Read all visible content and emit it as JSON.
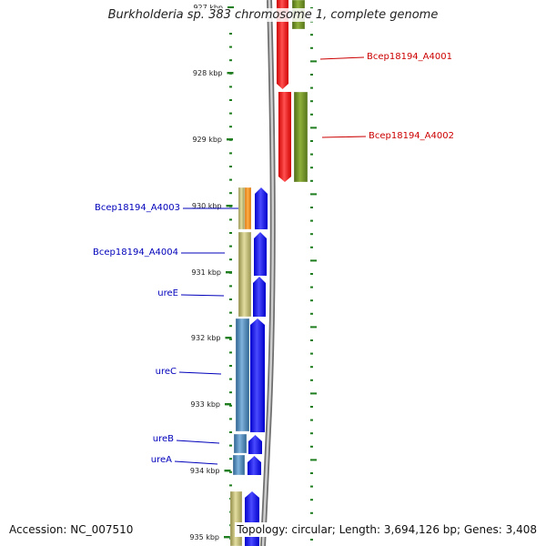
{
  "title": "Burkholderia sp. 383 chromosome 1, complete genome",
  "footer": {
    "accession": "Accession: NC_007510",
    "summary": "Topology: circular; Length: 3,694,126 bp; Genes: 3,408"
  },
  "scale_labels": [
    "927 kbp",
    "928 kbp",
    "929 kbp",
    "930 kbp",
    "931 kbp",
    "932 kbp",
    "933 kbp",
    "934 kbp",
    "935 kbp"
  ],
  "gene_labels": [
    {
      "text": "Bcep18194_A4001",
      "color": "#cc0000",
      "side": "right"
    },
    {
      "text": "Bcep18194_A4002",
      "color": "#cc0000",
      "side": "right"
    },
    {
      "text": "Bcep18194_A4003",
      "color": "#0000bb",
      "side": "left"
    },
    {
      "text": "Bcep18194_A4004",
      "color": "#0000bb",
      "side": "left"
    },
    {
      "text": "ureE",
      "color": "#0000bb",
      "side": "left"
    },
    {
      "text": "ureC",
      "color": "#0000bb",
      "side": "left"
    },
    {
      "text": "ureB",
      "color": "#0000bb",
      "side": "left"
    },
    {
      "text": "ureA",
      "color": "#0000bb",
      "side": "left"
    }
  ],
  "colors": {
    "forward_gene": "#0000ff",
    "reverse_gene": "#ff0000",
    "function_olive": "#6b8e23",
    "function_khaki": "#bdb76b",
    "function_orange": "#ff8c00",
    "function_steelblue": "#4682b4",
    "tick_green": "#1e7d1e",
    "backbone": "#888888"
  }
}
